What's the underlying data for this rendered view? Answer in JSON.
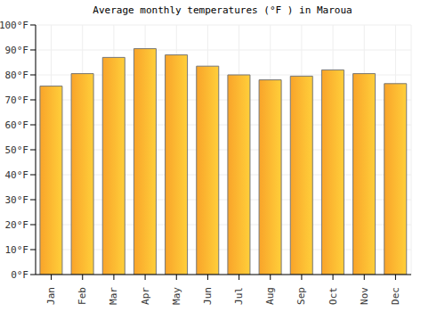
{
  "chart_data": {
    "type": "bar",
    "title": "Average monthly temperatures (°F ) in Maroua",
    "categories": [
      "Jan",
      "Feb",
      "Mar",
      "Apr",
      "May",
      "Jun",
      "Jul",
      "Aug",
      "Sep",
      "Oct",
      "Nov",
      "Dec"
    ],
    "values": [
      75.5,
      80.5,
      87,
      90.5,
      88,
      83.5,
      80,
      78,
      79.5,
      82,
      80.5,
      76.5
    ],
    "color": "#f9a42a",
    "ylim": [
      0,
      100
    ],
    "yticks": [
      {
        "value": 0,
        "label": "0°F"
      },
      {
        "value": 10,
        "label": "10°F"
      },
      {
        "value": 20,
        "label": "20°F"
      },
      {
        "value": 30,
        "label": "30°F"
      },
      {
        "value": 40,
        "label": "40°F"
      },
      {
        "value": 50,
        "label": "50°F"
      },
      {
        "value": 60,
        "label": "60°F"
      },
      {
        "value": 70,
        "label": "70°F"
      },
      {
        "value": 80,
        "label": "80°F"
      },
      {
        "value": 90,
        "label": "90°F"
      },
      {
        "value": 100,
        "label": "100°F"
      }
    ],
    "grid": true
  }
}
